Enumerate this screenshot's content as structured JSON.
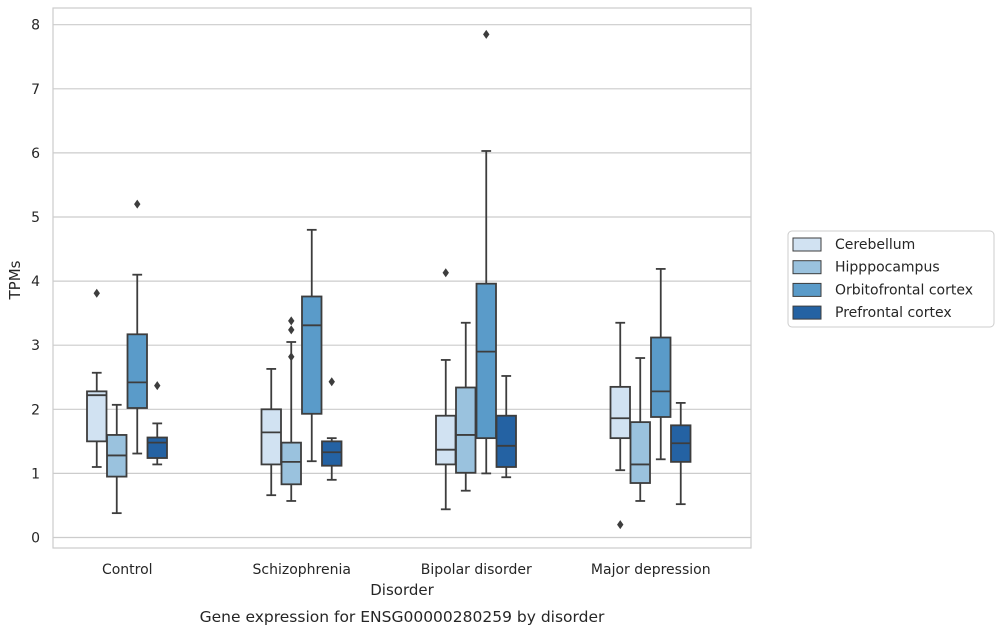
{
  "caption": "Gene expression for ENSG00000280259 by disorder",
  "chart_data": {
    "type": "box",
    "title": "",
    "xlabel": "Disorder",
    "ylabel": "TPMs",
    "ylim": [
      -0.15,
      8.25
    ],
    "yticks": [
      0,
      1,
      2,
      3,
      4,
      5,
      6,
      7,
      8
    ],
    "grid": true,
    "legend_position": "right",
    "categories": [
      "Control",
      "Schizophrenia",
      "Bipolar disorder",
      "Major depression"
    ],
    "series": [
      {
        "name": "Cerebellum",
        "color": "#d1e2f2",
        "boxes": [
          {
            "whislo": 1.1,
            "q1": 1.5,
            "med": 2.22,
            "q3": 2.28,
            "whishi": 2.57,
            "fliers": [
              3.81
            ]
          },
          {
            "whislo": 0.66,
            "q1": 1.14,
            "med": 1.64,
            "q3": 2.0,
            "whishi": 2.63,
            "fliers": []
          },
          {
            "whislo": 0.44,
            "q1": 1.14,
            "med": 1.37,
            "q3": 1.9,
            "whishi": 2.77,
            "fliers": [
              4.13
            ]
          },
          {
            "whislo": 1.05,
            "q1": 1.55,
            "med": 1.86,
            "q3": 2.35,
            "whishi": 3.35,
            "fliers": [
              0.2
            ]
          }
        ]
      },
      {
        "name": "Hipppocampus",
        "color": "#9ac2de",
        "boxes": [
          {
            "whislo": 0.38,
            "q1": 0.95,
            "med": 1.28,
            "q3": 1.6,
            "whishi": 2.07,
            "fliers": []
          },
          {
            "whislo": 0.57,
            "q1": 0.83,
            "med": 1.18,
            "q3": 1.48,
            "whishi": 3.05,
            "fliers": [
              3.24,
              3.38,
              2.82
            ]
          },
          {
            "whislo": 0.73,
            "q1": 1.01,
            "med": 1.6,
            "q3": 2.34,
            "whishi": 3.35,
            "fliers": []
          },
          {
            "whislo": 0.57,
            "q1": 0.85,
            "med": 1.14,
            "q3": 1.8,
            "whishi": 2.8,
            "fliers": []
          }
        ]
      },
      {
        "name": "Orbitofrontal cortex",
        "color": "#5a9bc9",
        "boxes": [
          {
            "whislo": 1.31,
            "q1": 2.02,
            "med": 2.42,
            "q3": 3.17,
            "whishi": 4.1,
            "fliers": [
              5.2
            ]
          },
          {
            "whislo": 1.19,
            "q1": 1.93,
            "med": 3.31,
            "q3": 3.76,
            "whishi": 4.8,
            "fliers": []
          },
          {
            "whislo": 1.0,
            "q1": 1.55,
            "med": 2.9,
            "q3": 3.96,
            "whishi": 6.03,
            "fliers": [
              7.85
            ]
          },
          {
            "whislo": 1.22,
            "q1": 1.88,
            "med": 2.28,
            "q3": 3.12,
            "whishi": 4.19,
            "fliers": []
          }
        ]
      },
      {
        "name": "Prefrontal cortex",
        "color": "#2462a3",
        "boxes": [
          {
            "whislo": 1.14,
            "q1": 1.24,
            "med": 1.48,
            "q3": 1.56,
            "whishi": 1.78,
            "fliers": [
              2.37
            ]
          },
          {
            "whislo": 0.9,
            "q1": 1.12,
            "med": 1.33,
            "q3": 1.5,
            "whishi": 1.55,
            "fliers": [
              2.43
            ]
          },
          {
            "whislo": 0.94,
            "q1": 1.1,
            "med": 1.43,
            "q3": 1.9,
            "whishi": 2.52,
            "fliers": []
          },
          {
            "whislo": 0.52,
            "q1": 1.18,
            "med": 1.47,
            "q3": 1.75,
            "whishi": 2.1,
            "fliers": []
          }
        ]
      }
    ]
  }
}
